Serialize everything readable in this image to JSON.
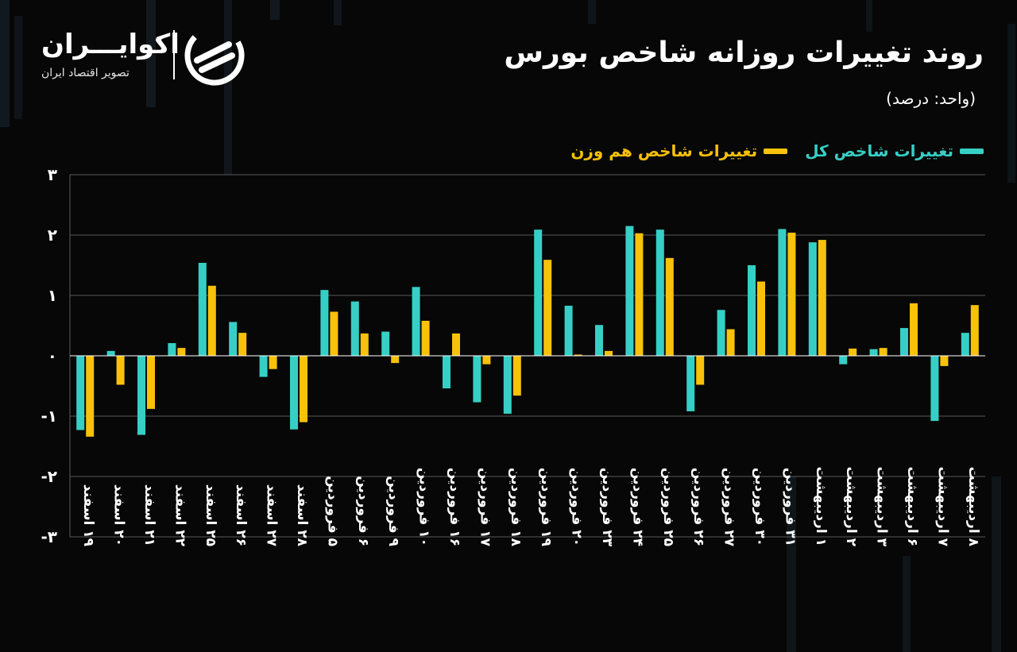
{
  "header": {
    "title": "روند تغییرات روزانه شاخص بورس",
    "unit": "(واحد: درصد)"
  },
  "brand": {
    "name": "اکوایـــران",
    "tagline": "تصویر اقتصاد ایران"
  },
  "colors": {
    "background": "#070707",
    "series_total": "#36cfc6",
    "series_equal": "#f8c10a",
    "grid": "#5a5a5a"
  },
  "chart_data": {
    "type": "bar",
    "title": "روند تغییرات روزانه شاخص بورس",
    "ylabel": "(واحد: درصد)",
    "ylim": [
      -3,
      3
    ],
    "yticks": [
      3,
      2,
      1,
      0,
      -1,
      -2,
      -3
    ],
    "ytick_labels": [
      "۳",
      "۲",
      "۱",
      "۰",
      "-۱",
      "-۲",
      "-۳"
    ],
    "grid": true,
    "legend_position": "top-right",
    "categories": [
      "۱۹ اسفند",
      "۲۰ اسفند",
      "۲۱ اسفند",
      "۲۲ اسفند",
      "۲۵ اسفند",
      "۲۶ اسفند",
      "۲۷ اسفند",
      "۲۸ اسفند",
      "۵ فروردین",
      "۶ فروردین",
      "۹ فروردین",
      "۱۰ فروردین",
      "۱۶ فروردین",
      "۱۷ فروردین",
      "۱۸ فروردین",
      "۱۹ فروردین",
      "۲۰ فروردین",
      "۲۳ فروردین",
      "۲۴ فروردین",
      "۲۵ فروردین",
      "۲۶ فروردین",
      "۲۷ فروردین",
      "۳۰ فروردین",
      "۳۱ فروردین",
      "۱ اردیبهشت",
      "۲ اردیبهشت",
      "۳ اردیبهشت",
      "۶ اردیبهشت",
      "۷ اردیبهشت",
      "۸ اردیبهشت"
    ],
    "series": [
      {
        "name": "تغییرات شاخص کل",
        "color": "#36cfc6",
        "values": [
          -1.23,
          0.08,
          -1.31,
          0.21,
          1.54,
          0.56,
          -0.35,
          -1.22,
          1.09,
          0.9,
          0.4,
          1.14,
          -0.54,
          -0.77,
          -0.96,
          2.09,
          0.83,
          0.51,
          2.15,
          2.09,
          -0.92,
          0.76,
          1.5,
          2.1,
          1.88,
          -0.14,
          0.11,
          0.46,
          -1.08,
          0.38
        ]
      },
      {
        "name": "تغییرات شاخص هم وزن",
        "color": "#f8c10a",
        "values": [
          -1.34,
          -0.48,
          -0.88,
          0.13,
          1.16,
          0.38,
          -0.22,
          -1.1,
          0.73,
          0.37,
          -0.12,
          0.58,
          0.37,
          -0.14,
          -0.66,
          1.59,
          0.02,
          0.08,
          2.03,
          1.62,
          -0.48,
          0.44,
          1.23,
          2.04,
          1.92,
          0.12,
          0.13,
          0.87,
          -0.17,
          0.84
        ]
      }
    ]
  }
}
